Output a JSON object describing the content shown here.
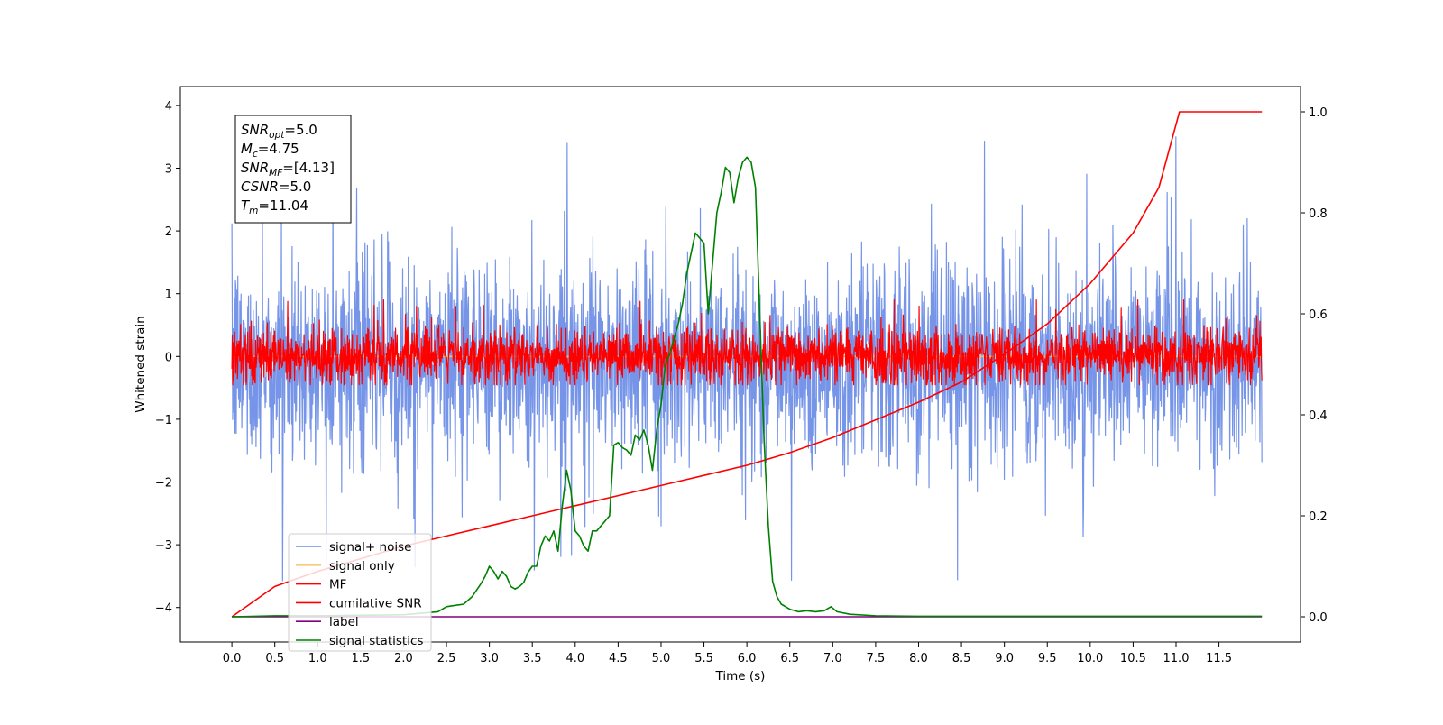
{
  "chart_data": {
    "type": "line",
    "xlabel": "Time (s)",
    "ylabel": "Whitened strain",
    "xlim": [
      -0.6,
      12.45
    ],
    "ylim": [
      -4.55,
      4.3
    ],
    "ylim_right": [
      -0.05,
      1.05
    ],
    "x_ticks": [
      "0.0",
      "0.5",
      "1.0",
      "1.5",
      "2.0",
      "2.5",
      "3.0",
      "3.5",
      "4.0",
      "4.5",
      "5.0",
      "5.5",
      "6.0",
      "6.5",
      "7.0",
      "7.5",
      "8.0",
      "8.5",
      "9.0",
      "9.5",
      "10.0",
      "10.5",
      "11.0",
      "11.5"
    ],
    "y_ticks": [
      "−4",
      "−3",
      "−2",
      "−1",
      "0",
      "1",
      "2",
      "3",
      "4"
    ],
    "y_ticks_right": [
      "0.0",
      "0.2",
      "0.4",
      "0.6",
      "0.8",
      "1.0"
    ],
    "grid": false,
    "legend_position": "lower-left",
    "annotation_box": {
      "lines": [
        {
          "base": "SNR",
          "sub": "opt",
          "value": "=5.0"
        },
        {
          "base": "M",
          "sub": "c",
          "value": "=4.75"
        },
        {
          "base": "SNR",
          "sub": "MF",
          "value": "=[4.13]"
        },
        {
          "base": "CSNR",
          "sub": "",
          "value": "=5.0"
        },
        {
          "base": "T",
          "sub": "m",
          "value": "=11.04"
        }
      ]
    },
    "series": [
      {
        "name": "signal+ noise",
        "axis": "left",
        "color": "#6a8ce6",
        "style": "noise",
        "x_range": [
          0.0,
          12.0
        ],
        "center": -0.1,
        "sigma": 0.8,
        "extremes": [
          -4.15,
          3.9
        ]
      },
      {
        "name": "signal only",
        "axis": "left",
        "color": "#f5be5a",
        "style": "flat",
        "x": [
          0.0,
          12.0
        ],
        "y": [
          0.0,
          0.0
        ]
      },
      {
        "name": "MF",
        "axis": "left",
        "color": "#ff0000",
        "style": "noise",
        "x_range": [
          0.0,
          12.0
        ],
        "center": 0.0,
        "sigma": 0.22,
        "extremes": [
          -0.45,
          0.9
        ]
      },
      {
        "name": "cumilative SNR",
        "axis": "right",
        "color": "#ff0000",
        "style": "line",
        "x": [
          0.0,
          0.5,
          1.0,
          1.5,
          2.0,
          2.5,
          3.0,
          3.5,
          4.0,
          4.5,
          5.0,
          5.5,
          6.0,
          6.5,
          7.0,
          7.5,
          8.0,
          8.5,
          9.0,
          9.5,
          10.0,
          10.5,
          10.8,
          11.04,
          12.0
        ],
        "y": [
          0.0,
          0.06,
          0.09,
          0.115,
          0.14,
          0.16,
          0.18,
          0.2,
          0.22,
          0.24,
          0.26,
          0.28,
          0.3,
          0.325,
          0.355,
          0.39,
          0.425,
          0.465,
          0.52,
          0.58,
          0.66,
          0.76,
          0.85,
          1.0,
          1.0
        ]
      },
      {
        "name": "label",
        "axis": "right",
        "color": "#800080",
        "style": "line",
        "x": [
          0.0,
          12.0
        ],
        "y": [
          0.0,
          0.0
        ]
      },
      {
        "name": "signal statistics",
        "axis": "right",
        "color": "#008000",
        "style": "line",
        "x": [
          0.0,
          0.5,
          1.0,
          1.5,
          2.0,
          2.4,
          2.5,
          2.7,
          2.8,
          2.9,
          2.95,
          3.0,
          3.05,
          3.1,
          3.15,
          3.2,
          3.25,
          3.3,
          3.35,
          3.4,
          3.45,
          3.5,
          3.55,
          3.6,
          3.65,
          3.7,
          3.75,
          3.8,
          3.85,
          3.9,
          3.95,
          4.0,
          4.05,
          4.1,
          4.15,
          4.2,
          4.25,
          4.3,
          4.35,
          4.4,
          4.45,
          4.5,
          4.55,
          4.6,
          4.65,
          4.7,
          4.75,
          4.8,
          4.85,
          4.9,
          4.95,
          5.0,
          5.05,
          5.1,
          5.15,
          5.2,
          5.25,
          5.3,
          5.35,
          5.4,
          5.45,
          5.5,
          5.55,
          5.6,
          5.65,
          5.7,
          5.75,
          5.8,
          5.85,
          5.9,
          5.95,
          6.0,
          6.05,
          6.1,
          6.15,
          6.2,
          6.25,
          6.3,
          6.35,
          6.4,
          6.5,
          6.6,
          6.7,
          6.8,
          6.9,
          6.98,
          7.05,
          7.2,
          7.5,
          8.0,
          8.5,
          9.0,
          10.0,
          11.0,
          12.0
        ],
        "y": [
          0.0,
          0.002,
          0.002,
          0.003,
          0.004,
          0.01,
          0.02,
          0.025,
          0.04,
          0.065,
          0.08,
          0.1,
          0.09,
          0.075,
          0.09,
          0.08,
          0.06,
          0.055,
          0.06,
          0.068,
          0.088,
          0.1,
          0.1,
          0.14,
          0.16,
          0.15,
          0.17,
          0.13,
          0.22,
          0.29,
          0.25,
          0.17,
          0.16,
          0.14,
          0.13,
          0.17,
          0.17,
          0.18,
          0.19,
          0.2,
          0.34,
          0.345,
          0.335,
          0.33,
          0.32,
          0.36,
          0.35,
          0.37,
          0.34,
          0.29,
          0.37,
          0.42,
          0.5,
          0.52,
          0.55,
          0.58,
          0.62,
          0.68,
          0.72,
          0.76,
          0.75,
          0.74,
          0.6,
          0.7,
          0.8,
          0.84,
          0.89,
          0.88,
          0.82,
          0.87,
          0.9,
          0.91,
          0.9,
          0.85,
          0.6,
          0.35,
          0.18,
          0.07,
          0.04,
          0.025,
          0.015,
          0.01,
          0.012,
          0.01,
          0.012,
          0.02,
          0.01,
          0.005,
          0.002,
          0.001,
          0.001,
          0.001,
          0.001,
          0.001,
          0.001
        ]
      }
    ]
  }
}
